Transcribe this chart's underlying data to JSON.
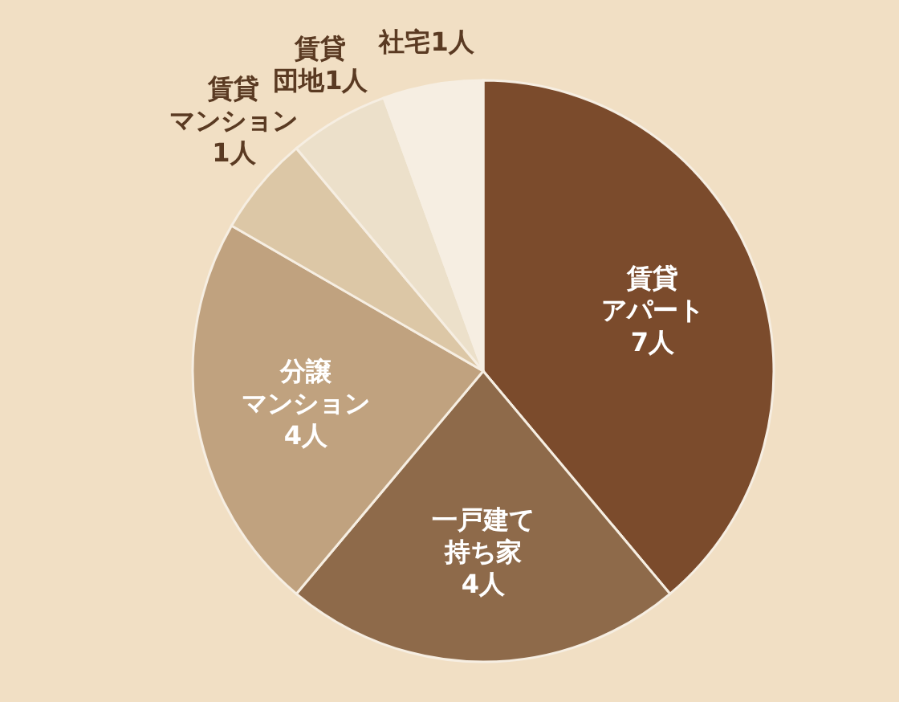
{
  "chart_data": {
    "type": "pie",
    "categories": [
      "賃貸アパート",
      "一戸建て持ち家",
      "分譲マンション",
      "賃貸マンション",
      "賃貸団地",
      "社宅"
    ],
    "values": [
      7,
      4,
      4,
      1,
      1,
      1
    ],
    "value_labels": [
      "7人",
      "4人",
      "4人",
      "1人",
      "1人",
      "1人"
    ],
    "colors": [
      "#7b4b2c",
      "#8e6a4a",
      "#c0a27f",
      "#dcc7a6",
      "#ece0ca",
      "#f6eee2"
    ]
  }
}
